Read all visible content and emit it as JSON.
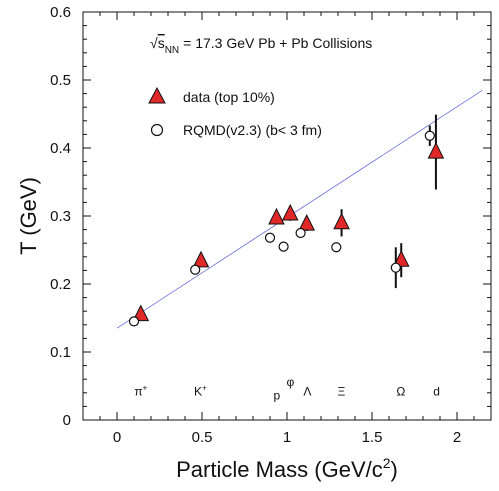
{
  "chart_data": {
    "type": "scatter",
    "annotation": {
      "sqrt_symbol": "√",
      "s_label": "s",
      "s_subscript": "NN",
      "text": "= 17.3 GeV Pb + Pb Collisions"
    },
    "xlabel": {
      "main": "Particle Mass (GeV/c",
      "superscript": "2",
      "close": ")"
    },
    "ylabel": "T (GeV)",
    "xlim": [
      -0.2,
      2.2
    ],
    "ylim": [
      0,
      0.6
    ],
    "xticks": [
      {
        "value": 0,
        "label": "0"
      },
      {
        "value": 0.5,
        "label": "0.5"
      },
      {
        "value": 1,
        "label": "1"
      },
      {
        "value": 1.5,
        "label": "1.5"
      },
      {
        "value": 2,
        "label": "2"
      }
    ],
    "yticks": [
      {
        "value": 0,
        "label": "0"
      },
      {
        "value": 0.1,
        "label": "0.1"
      },
      {
        "value": 0.2,
        "label": "0.2"
      },
      {
        "value": 0.3,
        "label": "0.3"
      },
      {
        "value": 0.4,
        "label": "0.4"
      },
      {
        "value": 0.5,
        "label": "0.5"
      },
      {
        "value": 0.6,
        "label": "0.6"
      }
    ],
    "particle_labels": [
      {
        "base": "π",
        "sup": "+",
        "x": 0.14,
        "y": 0.036
      },
      {
        "base": "K",
        "sup": "+",
        "x": 0.49,
        "y": 0.036
      },
      {
        "base": "p",
        "sup": "",
        "x": 0.94,
        "y": 0.03
      },
      {
        "base": "φ",
        "sup": "",
        "x": 1.02,
        "y": 0.05
      },
      {
        "base": "Λ",
        "sup": "",
        "x": 1.12,
        "y": 0.036
      },
      {
        "base": "Ξ",
        "sup": "",
        "x": 1.32,
        "y": 0.036
      },
      {
        "base": "Ω",
        "sup": "",
        "x": 1.67,
        "y": 0.036
      },
      {
        "base": "d",
        "sup": "",
        "x": 1.88,
        "y": 0.036
      }
    ],
    "fit_line": {
      "x": [
        0,
        2.15
      ],
      "y": [
        0.135,
        0.485
      ],
      "color": "#6b6fd9"
    },
    "legend_position": "top-left",
    "series": [
      {
        "name": "data (top 10%)",
        "marker": "triangle",
        "color": "#e02828",
        "points": [
          {
            "x": 0.14,
            "y": 0.155,
            "err": 0.0
          },
          {
            "x": 0.494,
            "y": 0.234,
            "err": 0.0
          },
          {
            "x": 0.938,
            "y": 0.297,
            "err": 0.0
          },
          {
            "x": 1.019,
            "y": 0.303,
            "err": 0.01
          },
          {
            "x": 1.116,
            "y": 0.288,
            "err": 0.01
          },
          {
            "x": 1.321,
            "y": 0.29,
            "err": 0.02
          },
          {
            "x": 1.672,
            "y": 0.235,
            "err": 0.025
          },
          {
            "x": 1.876,
            "y": 0.394,
            "err": 0.055
          }
        ]
      },
      {
        "name": "RQMD(v2.3) (b< 3 fm)",
        "marker": "open-circle",
        "color": "#111111",
        "points": [
          {
            "x": 0.1,
            "y": 0.145,
            "err": 0.0
          },
          {
            "x": 0.46,
            "y": 0.221,
            "err": 0.0
          },
          {
            "x": 0.9,
            "y": 0.268,
            "err": 0.0
          },
          {
            "x": 0.98,
            "y": 0.255,
            "err": 0.0
          },
          {
            "x": 1.08,
            "y": 0.275,
            "err": 0.0
          },
          {
            "x": 1.29,
            "y": 0.254,
            "err": 0.0
          },
          {
            "x": 1.64,
            "y": 0.224,
            "err": 0.03
          },
          {
            "x": 1.84,
            "y": 0.418,
            "err": 0.015
          }
        ]
      }
    ]
  }
}
